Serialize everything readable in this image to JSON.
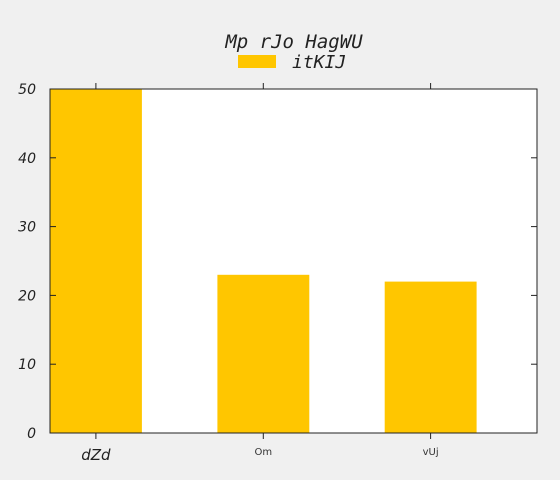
{
  "chart_data": {
    "type": "bar",
    "title": "Mp rJo HagWU",
    "categories": [
      "dZd",
      "Om",
      "vUj"
    ],
    "series": [
      {
        "name": "itKIJ",
        "values": [
          50,
          23,
          22
        ],
        "color": "#ffc600"
      }
    ],
    "xlabel": "",
    "ylabel": "",
    "ylim": [
      0,
      50
    ],
    "yticks": [
      0,
      10,
      20,
      30,
      40,
      50
    ],
    "grid": false,
    "legend_position": "top-center",
    "background": "#f0f0f0",
    "plot_background": "#ffffff"
  }
}
